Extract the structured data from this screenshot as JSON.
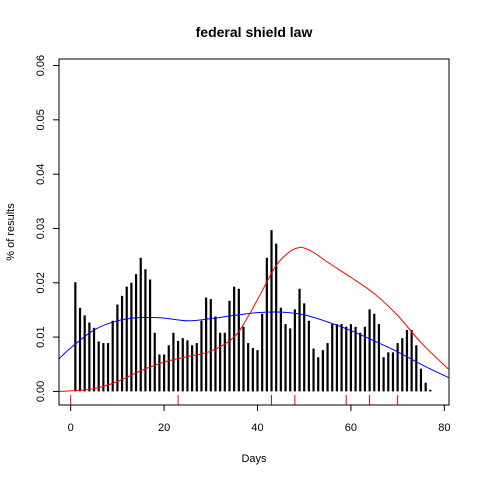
{
  "chart_data": {
    "type": "bar",
    "title": "federal shield law",
    "xlabel": "Days",
    "ylabel": "% of results",
    "xlim": [
      -2.5,
      81
    ],
    "ylim": [
      -0.0025,
      0.0612
    ],
    "x_ticks": [
      0,
      20,
      40,
      60,
      80
    ],
    "x_tick_labels": [
      "0",
      "20",
      "40",
      "60",
      "80"
    ],
    "y_ticks": [
      0.0,
      0.01,
      0.02,
      0.03,
      0.04,
      0.05,
      0.06
    ],
    "y_tick_labels": [
      "0.00",
      "0.01",
      "0.02",
      "0.03",
      "0.04",
      "0.05",
      "0.06"
    ],
    "grid": false,
    "bars": {
      "color": "#000000",
      "x": [
        1,
        2,
        3,
        4,
        5,
        6,
        7,
        8,
        9,
        10,
        11,
        12,
        13,
        14,
        15,
        16,
        17,
        18,
        19,
        20,
        21,
        22,
        23,
        24,
        25,
        26,
        27,
        28,
        29,
        30,
        31,
        32,
        33,
        34,
        35,
        36,
        37,
        38,
        39,
        40,
        41,
        42,
        43,
        44,
        45,
        46,
        47,
        48,
        49,
        50,
        51,
        52,
        53,
        54,
        55,
        56,
        57,
        58,
        59,
        60,
        61,
        62,
        63,
        64,
        65,
        66,
        67,
        68,
        69,
        70,
        71,
        72,
        73,
        74,
        75,
        76,
        77
      ],
      "values": [
        0.0201,
        0.0154,
        0.014,
        0.0127,
        0.0117,
        0.0092,
        0.0089,
        0.0089,
        0.013,
        0.016,
        0.0176,
        0.0193,
        0.02,
        0.0216,
        0.0246,
        0.0225,
        0.0206,
        0.0108,
        0.0068,
        0.0068,
        0.0085,
        0.0108,
        0.0093,
        0.0098,
        0.0094,
        0.0085,
        0.0089,
        0.013,
        0.0173,
        0.017,
        0.0138,
        0.0108,
        0.0108,
        0.0167,
        0.0193,
        0.0189,
        0.0119,
        0.0089,
        0.008,
        0.0076,
        0.0143,
        0.0246,
        0.0297,
        0.0272,
        0.0154,
        0.0124,
        0.0116,
        0.0151,
        0.0189,
        0.0162,
        0.013,
        0.0079,
        0.0063,
        0.0076,
        0.0089,
        0.0124,
        0.0124,
        0.0124,
        0.0119,
        0.0124,
        0.0119,
        0.0108,
        0.0119,
        0.0151,
        0.0143,
        0.0124,
        0.0063,
        0.0072,
        0.0072,
        0.0089,
        0.0098,
        0.0113,
        0.0113,
        0.0085,
        0.0042,
        0.0016,
        0.0003
      ]
    },
    "series": [
      {
        "type": "line",
        "color": "#0000ff",
        "x": [
          -2.5,
          0,
          5,
          10,
          15,
          20,
          25,
          30,
          35,
          40,
          45,
          50,
          55,
          60,
          65,
          70,
          75,
          81
        ],
        "values": [
          0.006,
          0.008,
          0.0113,
          0.013,
          0.0136,
          0.0135,
          0.013,
          0.0134,
          0.014,
          0.0145,
          0.0146,
          0.0141,
          0.0128,
          0.0112,
          0.0093,
          0.0073,
          0.005,
          0.0025
        ]
      },
      {
        "type": "line",
        "color": "#ff0000",
        "x": [
          -2.5,
          0,
          5,
          10,
          15,
          20,
          25,
          30,
          35,
          38,
          41,
          44,
          47,
          49,
          50,
          52,
          55,
          60,
          65,
          70,
          75,
          81
        ],
        "values": [
          0.0,
          0.0001,
          0.0005,
          0.0018,
          0.0038,
          0.0054,
          0.0064,
          0.0074,
          0.01,
          0.0138,
          0.0185,
          0.0232,
          0.0258,
          0.0265,
          0.0264,
          0.0256,
          0.0238,
          0.021,
          0.018,
          0.014,
          0.009,
          0.004
        ]
      }
    ],
    "rug": {
      "x": [
        0,
        23,
        43,
        48,
        59,
        64,
        70
      ],
      "colors": [
        "#ff0000",
        "#ff0000",
        "#ff0000",
        "#ff0000",
        "#ff0000",
        "#ff0000",
        "#ff0000"
      ]
    }
  }
}
